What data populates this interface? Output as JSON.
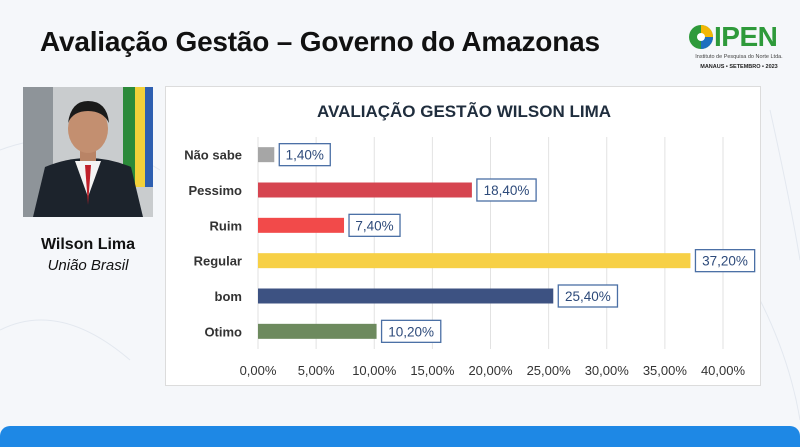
{
  "slide": {
    "title": "Avaliação Gestão – Governo do Amazonas"
  },
  "logo": {
    "name": "IPEN",
    "subtitle": "Instituto de Pesquisa do Norte Ltda.",
    "date_line": "MANAUS • SETEMBRO • 2023"
  },
  "person": {
    "name": "Wilson Lima",
    "party": "União Brasil"
  },
  "colors": {
    "title_blue": "#1f2d3d",
    "label_box_border": "#4a6fa5"
  },
  "chart_data": {
    "type": "bar",
    "orientation": "horizontal",
    "title": "AVALIAÇÃO GESTÃO WILSON LIMA",
    "categories": [
      "Não sabe",
      "Pessimo",
      "Ruim",
      "Regular",
      "bom",
      "Otimo"
    ],
    "values": [
      1.4,
      18.4,
      7.4,
      37.2,
      25.4,
      10.2
    ],
    "value_labels": [
      "1,40%",
      "18,40%",
      "7,40%",
      "37,20%",
      "25,40%",
      "10,20%"
    ],
    "bar_colors": [
      "#a6a6a6",
      "#d64550",
      "#f24a4a",
      "#f7d046",
      "#3d5282",
      "#6d8a5e"
    ],
    "xlim": [
      0,
      40
    ],
    "x_ticks": [
      0,
      5,
      10,
      15,
      20,
      25,
      30,
      35,
      40
    ],
    "x_tick_labels": [
      "0,00%",
      "5,00%",
      "10,00%",
      "15,00%",
      "20,00%",
      "25,00%",
      "30,00%",
      "35,00%",
      "40,00%"
    ],
    "grid": true,
    "legend": "none"
  }
}
